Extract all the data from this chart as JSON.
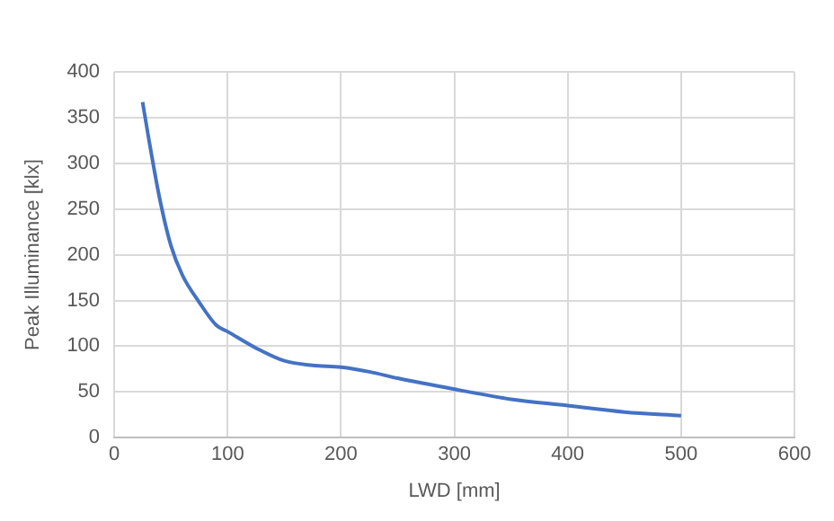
{
  "chart_data": {
    "type": "line",
    "xlabel": "LWD [mm]",
    "ylabel": "Peak Illuminance [klx]",
    "x": [
      25,
      30,
      40,
      50,
      60,
      75,
      90,
      100,
      125,
      150,
      175,
      200,
      225,
      250,
      300,
      350,
      400,
      450,
      500
    ],
    "series": [
      {
        "color": "#4472c4",
        "values": [
          367,
          330,
          262,
          210,
          178,
          148,
          123,
          116,
          98,
          84,
          79,
          77,
          72,
          65,
          53,
          42,
          35,
          28,
          24
        ]
      }
    ],
    "xlim": [
      0,
      600
    ],
    "xticks": [
      0,
      100,
      200,
      300,
      400,
      500,
      600
    ],
    "ylim": [
      0,
      400
    ],
    "yticks": [
      0,
      50,
      100,
      150,
      200,
      250,
      300,
      350,
      400
    ],
    "grid": true,
    "legend": false,
    "marker": "none",
    "line_style": "solid"
  }
}
